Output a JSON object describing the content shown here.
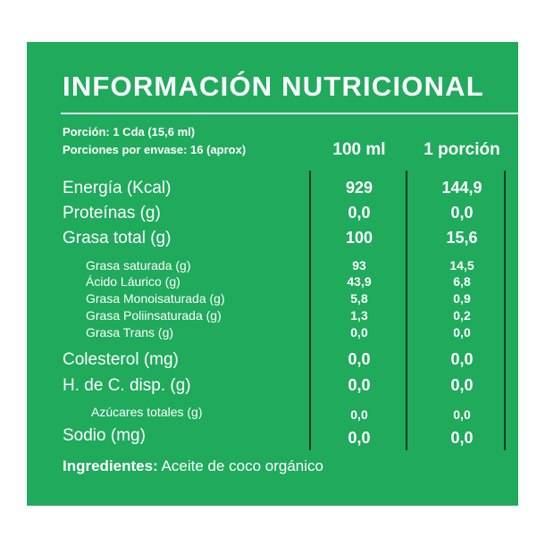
{
  "colors": {
    "panel": "#1faa5c",
    "text": "#ffffff",
    "divider": "#0d3d22"
  },
  "title": "INFORMACIÓN NUTRICIONAL",
  "serving": {
    "portion": "Porción: 1 Cda (15,6 ml)",
    "servings_per_container": "Porciones por envase: 16 (aprox)"
  },
  "columns": [
    "100 ml",
    "1 porción"
  ],
  "rows": [
    {
      "label": "Energía (Kcal)",
      "v100": "929",
      "vportion": "144,9"
    },
    {
      "label": "Proteínas (g)",
      "v100": "0,0",
      "vportion": "0,0"
    },
    {
      "label": "Grasa total (g)",
      "v100": "100",
      "vportion": "15,6"
    },
    {
      "label": "Grasa saturada (g)",
      "v100": "93",
      "vportion": "14,5"
    },
    {
      "label": "Ácido Láurico (g)",
      "v100": "43,9",
      "vportion": "6,8"
    },
    {
      "label": "Grasa Monoisaturada (g)",
      "v100": "5,8",
      "vportion": "0,9"
    },
    {
      "label": "Grasa Poliinsaturada (g)",
      "v100": "1,3",
      "vportion": "0,2"
    },
    {
      "label": "Grasa Trans (g)",
      "v100": "0,0",
      "vportion": "0,0"
    },
    {
      "label": "Colesterol (mg)",
      "v100": "0,0",
      "vportion": "0,0"
    },
    {
      "label": "H. de C. disp. (g)",
      "v100": "0,0",
      "vportion": "0,0"
    },
    {
      "label": "Azúcares totales (g)",
      "v100": "0,0",
      "vportion": "0,0"
    },
    {
      "label": "Sodio (mg)",
      "v100": "0,0",
      "vportion": "0,0"
    }
  ],
  "ingredients": {
    "label": "Ingredientes:",
    "text": "Aceite de coco orgánico"
  }
}
